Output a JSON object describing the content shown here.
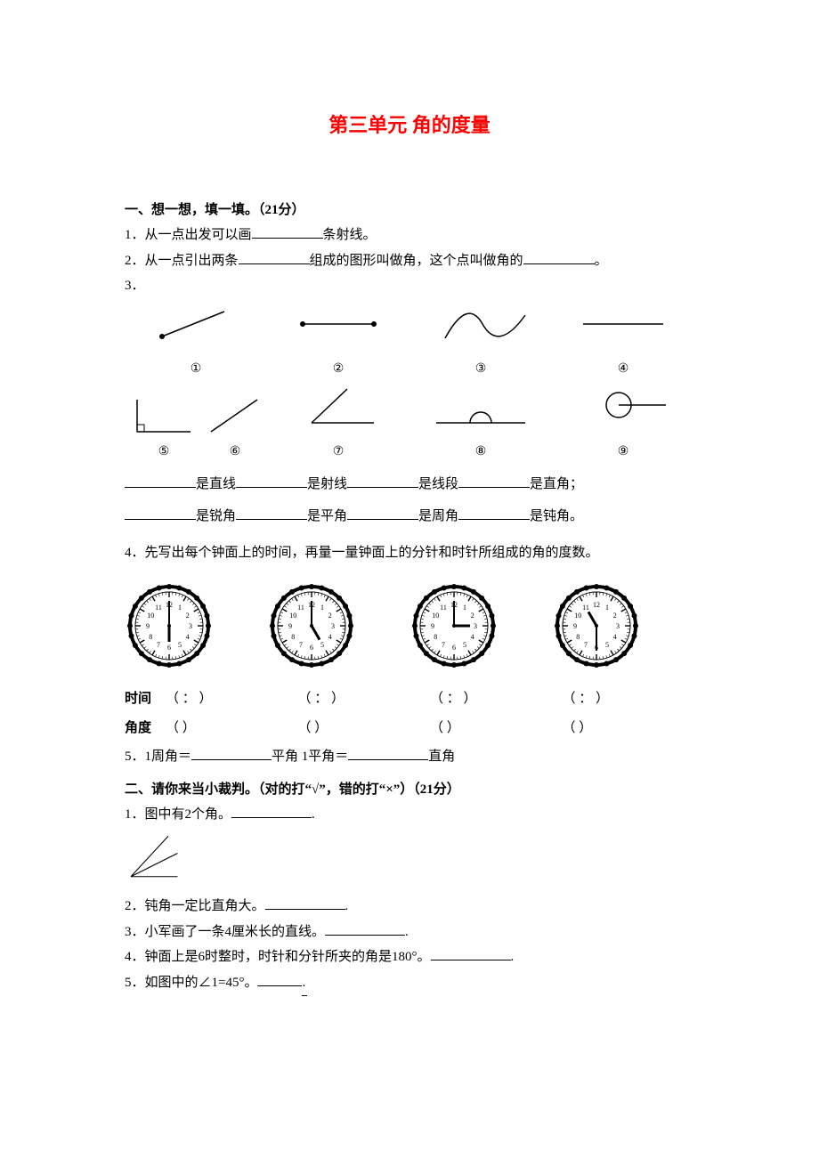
{
  "title": "第三单元   角的度量",
  "section1": {
    "heading": "一、想一想，填一填。（21分）",
    "q1_pre": "1．从一点出发可以画",
    "q1_post": "条射线。",
    "q2_pre": "2．从一点引出两条",
    "q2_mid": "组成的图形叫做角，这个点叫做角的",
    "q2_post": "。",
    "q3_label": "3．",
    "q3_circles": [
      "①",
      "②",
      "③",
      "④",
      "⑤",
      "⑥",
      "⑦",
      "⑧",
      "⑨"
    ],
    "q3_terms": {
      "line": "是直线",
      "ray": "是射线",
      "seg": "是线段",
      "right": "是直角；",
      "acute": "是锐角",
      "straight": "是平角",
      "full": "是周角",
      "obtuse": "是钝角。"
    },
    "q4_text": "4．先写出每个钟面上的时间，再量一量钟面上的分针和时针所组成的角的度数。",
    "clocks": [
      {
        "hour": 6,
        "minute": 0
      },
      {
        "hour": 5,
        "minute": 0
      },
      {
        "hour": 3,
        "minute": 0
      },
      {
        "hour": 10.5,
        "minute": 30
      }
    ],
    "time_label": "时间",
    "angle_label": "角度",
    "time_placeholder": "（   ：   ）",
    "angle_placeholder": "（         ）",
    "q5_pre": "5．1周角＝",
    "q5_mid": "平角      1平角＝",
    "q5_post": "直角"
  },
  "section2": {
    "heading": "二、请你来当小裁判。（对的打“√”，错的打“×”）（21分）",
    "q1": "1．图中有2个角。",
    "q2": "2．钝角一定比直角大。",
    "q3": "3．小军画了一条4厘米长的直线。",
    "q4": "4．钟面上是6时整时，时针和分针所夹的角是180°。",
    "q5": "5．如图中的∠1=45°。",
    "tf_suffix": "."
  },
  "style": {
    "title_color": "#ff0000",
    "text_color": "#000000",
    "tick_color": "#000000",
    "clock_border_color": "#000000",
    "clock_fill": "#ffffff",
    "numeral_font_size": 8
  }
}
